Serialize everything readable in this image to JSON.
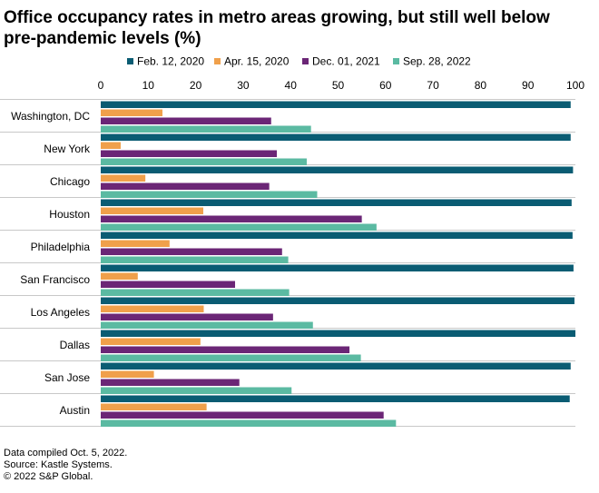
{
  "chart_data": {
    "type": "bar",
    "orientation": "horizontal",
    "title": "Office occupancy rates in metro areas growing, but still well below pre-pandemic levels (%)",
    "xlabel": "",
    "ylabel": "",
    "xlim": [
      0,
      100
    ],
    "x_ticks": [
      "0",
      "10",
      "20",
      "30",
      "40",
      "50",
      "60",
      "70",
      "80",
      "90",
      "100"
    ],
    "legend_position": "top",
    "grid": false,
    "categories": [
      "Washington, DC",
      "New York",
      "Chicago",
      "Houston",
      "Philadelphia",
      "San Francisco",
      "Los Angeles",
      "Dallas",
      "San Jose",
      "Austin"
    ],
    "series": [
      {
        "name": "Feb. 12, 2020",
        "color": "#0a5c73",
        "values": [
          99,
          99,
          99.5,
          99.2,
          99.4,
          99.6,
          99.8,
          100,
          99,
          98.8
        ]
      },
      {
        "name": "Apr. 15, 2020",
        "color": "#f0a04b",
        "values": [
          13,
          4.2,
          9.4,
          21.6,
          14.5,
          7.8,
          21.7,
          21,
          11.2,
          22.3
        ]
      },
      {
        "name": "Dec. 01, 2021",
        "color": "#6b2676",
        "values": [
          35.9,
          37.1,
          35.5,
          55,
          38.2,
          28.3,
          36.3,
          52.4,
          29.2,
          59.6
        ]
      },
      {
        "name": "Sep. 28, 2022",
        "color": "#5bbaa2",
        "values": [
          44.3,
          43.4,
          45.6,
          58.1,
          39.5,
          39.7,
          44.7,
          54.8,
          40.2,
          62.2
        ]
      }
    ]
  },
  "footer": {
    "line1": "Data compiled Oct. 5, 2022.",
    "line2": "Source: Kastle Systems.",
    "line3": "© 2022 S&P Global."
  }
}
